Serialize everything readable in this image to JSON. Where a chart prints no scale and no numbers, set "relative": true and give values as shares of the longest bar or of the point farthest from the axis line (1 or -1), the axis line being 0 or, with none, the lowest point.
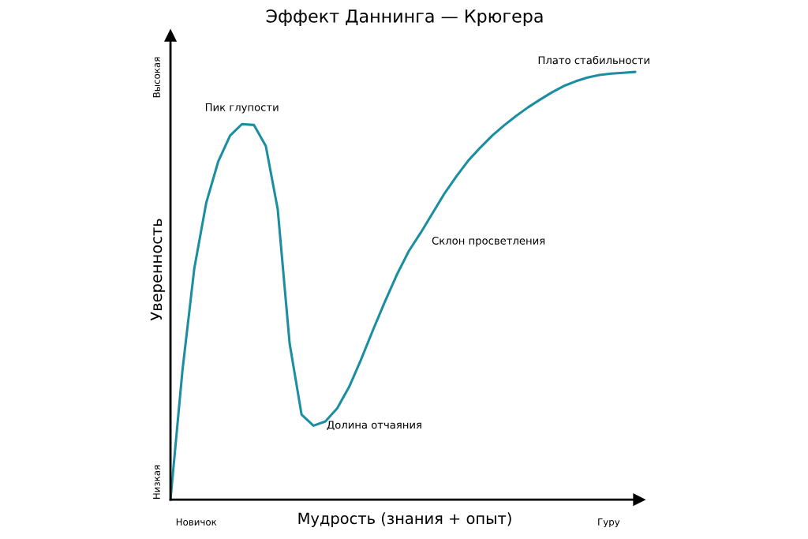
{
  "chart_data": {
    "type": "line",
    "title": "Эффект Даннинга — Крюгера",
    "xlabel": "Мудрость (знания + опыт)",
    "ylabel": "Уверенность",
    "relative": true,
    "categories": [
      null,
      null,
      null,
      null,
      null,
      null,
      null,
      null,
      null,
      null,
      null,
      null,
      null,
      null,
      null,
      null,
      null,
      null,
      null,
      null,
      null,
      null,
      null,
      null,
      null,
      null,
      null,
      null,
      null,
      null,
      null,
      null,
      null,
      null,
      null,
      null,
      null,
      null,
      null,
      null
    ],
    "series": [
      {
        "color": "#1b8fa1",
        "values": [
          0,
          0.301,
          0.541,
          0.694,
          0.79,
          0.851,
          0.878,
          0.876,
          0.827,
          0.679,
          0.365,
          0.199,
          0.173,
          0.183,
          0.214,
          0.264,
          0.328,
          0.397,
          0.463,
          0.526,
          0.581,
          0.624,
          0.67,
          0.716,
          0.756,
          0.793,
          0.823,
          0.851,
          0.875,
          0.897,
          0.917,
          0.935,
          0.952,
          0.967,
          0.978,
          0.987,
          0.993,
          0.996,
          0.998,
          1
        ]
      }
    ],
    "annotations": [
      "Пик глупости",
      "Долина отчаяния",
      "Склон просветления",
      "Плато стабильности",
      "Новичок",
      "Гуру",
      "Низкая",
      "Высокая"
    ],
    "grid": false,
    "legend": false,
    "marker": "none",
    "line_style": "solid"
  }
}
